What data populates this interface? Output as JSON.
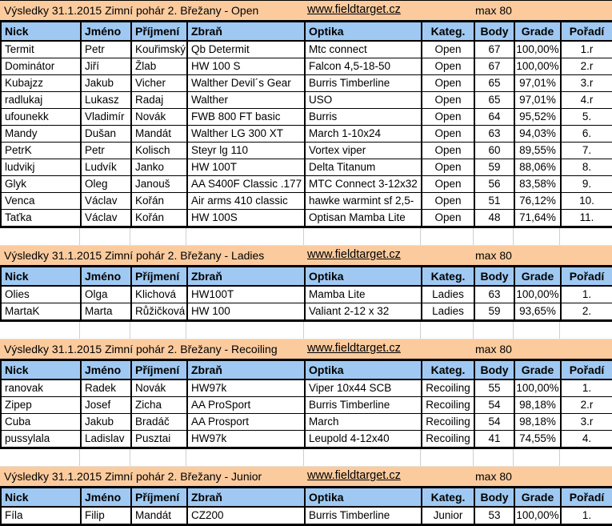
{
  "shared": {
    "link": "www.fieldtarget.cz",
    "max_label": "max 80"
  },
  "colors": {
    "title_bg": "#FBCB9E",
    "header_bg": "#9FC9F2",
    "border": "#000000",
    "grid": "#CFCFCF"
  },
  "columns": [
    {
      "key": "nick",
      "label": "Nick"
    },
    {
      "key": "jmeno",
      "label": "Jméno"
    },
    {
      "key": "prijmeni",
      "label": "Příjmení"
    },
    {
      "key": "zbran",
      "label": "Zbraň"
    },
    {
      "key": "optika",
      "label": "Optika"
    },
    {
      "key": "kateg",
      "label": "Kateg."
    },
    {
      "key": "body",
      "label": "Body"
    },
    {
      "key": "grade",
      "label": "Grade"
    },
    {
      "key": "poradi",
      "label": "Pořadí"
    }
  ],
  "sections": [
    {
      "id": "open",
      "title": "Výsledky 31.1.2015 Zimní pohár 2. Břežany - Open",
      "rows": [
        [
          "Termit",
          "Petr",
          "Kouřimský",
          "Qb Determit",
          "Mtc connect",
          "Open",
          "67",
          "100,00%",
          "1.r"
        ],
        [
          "Dominátor",
          "Jiří",
          "Žlab",
          "HW 100 S",
          "Falcon 4,5-18-50",
          "Open",
          "67",
          "100,00%",
          "2.r"
        ],
        [
          "Kubajzz",
          "Jakub",
          "Vicher",
          "Walther Devil´s Gear",
          "Burris Timberline",
          "Open",
          "65",
          "97,01%",
          "3.r"
        ],
        [
          "radlukaj",
          "Lukasz",
          "Radaj",
          "Walther",
          "USO",
          "Open",
          "65",
          "97,01%",
          "4.r"
        ],
        [
          "ufounekk",
          "Vladimír",
          "Novák",
          "FWB 800 FT basic",
          "Burris",
          "Open",
          "64",
          "95,52%",
          "5."
        ],
        [
          "Mandy",
          "Dušan",
          "Mandát",
          "Walther LG 300 XT",
          "March 1-10x24",
          "Open",
          "63",
          "94,03%",
          "6."
        ],
        [
          "PetrK",
          "Petr",
          "Kolisch",
          "Steyr lg 110",
          "Vortex viper",
          "Open",
          "60",
          "89,55%",
          "7."
        ],
        [
          "ludvikj",
          "Ludvík",
          "Janko",
          "HW 100T",
          "Delta Titanum",
          "Open",
          "59",
          "88,06%",
          "8."
        ],
        [
          "Glyk",
          "Oleg",
          "Janouš",
          "AA S400F Classic .177",
          "MTC Connect 3-12x32",
          "Open",
          "56",
          "83,58%",
          "9."
        ],
        [
          "Venca",
          "Václav",
          "Kořán",
          "Air arms 410 classic",
          "hawke warmint sf 2,5-",
          "Open",
          "51",
          "76,12%",
          "10."
        ],
        [
          "Taťka",
          "Václav",
          "Kořán",
          "HW 100S",
          "Optisan Mamba Lite",
          "Open",
          "48",
          "71,64%",
          "11."
        ]
      ]
    },
    {
      "id": "ladies",
      "title": "Výsledky 31.1.2015 Zimní pohár 2. Břežany - Ladies",
      "rows": [
        [
          "Olies",
          "Olga",
          "Klichová",
          "HW100T",
          "Mamba Lite",
          "Ladies",
          "63",
          "100,00%",
          "1."
        ],
        [
          "MartaK",
          "Marta",
          "Růžičková",
          "HW 100",
          "Valiant 2-12 x 32",
          "Ladies",
          "59",
          "93,65%",
          "2."
        ]
      ]
    },
    {
      "id": "recoiling",
      "title": "Výsledky 31.1.2015 Zimní pohár 2. Břežany - Recoiling",
      "rows": [
        [
          "ranovak",
          "Radek",
          "Novák",
          "HW97k",
          "Viper 10x44 SCB",
          "Recoiling",
          "55",
          "100,00%",
          "1."
        ],
        [
          "Zipep",
          "Josef",
          "Zicha",
          "AA ProSport",
          "Burris Timberline",
          "Recoiling",
          "54",
          "98,18%",
          "2.r"
        ],
        [
          "Cuba",
          "Jakub",
          "Bradáč",
          "AA Prosport",
          "March",
          "Recoiling",
          "54",
          "98,18%",
          "3.r"
        ],
        [
          "pussylala",
          "Ladislav",
          "Pusztai",
          "HW97k",
          "Leupold 4-12x40",
          "Recoiling",
          "41",
          "74,55%",
          "4."
        ]
      ]
    },
    {
      "id": "junior",
      "title": "Výsledky 31.1.2015 Zimní pohár 2. Břežany - Junior",
      "rows": [
        [
          "Fíla",
          "Filip",
          "Mandát",
          "CZ200",
          "Burris Timberline",
          "Junior",
          "53",
          "100,00%",
          "1."
        ]
      ]
    }
  ]
}
